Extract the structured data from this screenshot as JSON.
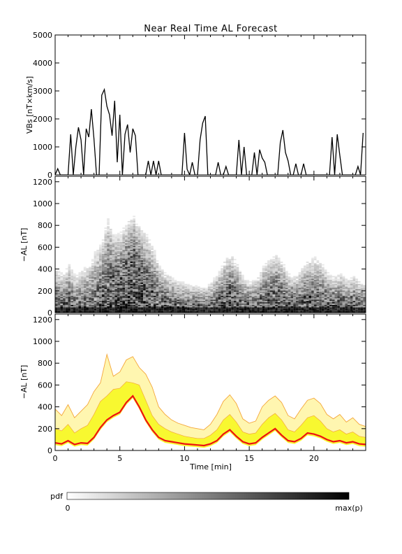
{
  "title": "Near Real Time AL Forecast",
  "colors": {
    "vbs_line": "#000000",
    "median": "#ee1111",
    "band_outer": "#fff6b0",
    "band_inner": "#f8f830",
    "band_edge": "#f4a63a"
  },
  "chart_data": [
    {
      "panel": "top",
      "type": "line",
      "ylabel": "VBs [nT×km/s]",
      "xlim": [
        0,
        24
      ],
      "ylim": [
        0,
        5000
      ],
      "yticks": [
        "0",
        "1000",
        "2000",
        "3000",
        "4000",
        "5000"
      ],
      "x_step_min": 0.5,
      "series": [
        {
          "values": [
            0,
            220,
            0,
            0,
            0,
            0,
            1450,
            0,
            1000,
            1700,
            1250,
            0,
            1650,
            1350,
            2350,
            1300,
            0,
            0,
            2850,
            3050,
            2450,
            2150,
            1400,
            2650,
            450,
            2150,
            0,
            1450,
            1800,
            800,
            1650,
            1400,
            0,
            0,
            0,
            0,
            500,
            0,
            500,
            0,
            500,
            0,
            0,
            0,
            0,
            0,
            0,
            0,
            0,
            0,
            1500,
            200,
            0,
            450,
            0,
            0,
            1250,
            1850,
            2100,
            0,
            0,
            0,
            0,
            450,
            0,
            0,
            300,
            0,
            0,
            0,
            0,
            1250,
            0,
            1000,
            0,
            0,
            0,
            800,
            0,
            900,
            600,
            450,
            0,
            0,
            0,
            0,
            0,
            1150,
            1600,
            800,
            500,
            0,
            0,
            400,
            0,
            0,
            400,
            0,
            0,
            0,
            0,
            0,
            0,
            0,
            0,
            0,
            0,
            1350,
            0,
            1450,
            700,
            0,
            0,
            0,
            0,
            0,
            0,
            300,
            0,
            1500
          ]
        }
      ]
    },
    {
      "panel": "middle",
      "type": "heatmap",
      "ylabel": "−AL [nT]",
      "xlim": [
        0,
        24
      ],
      "ylim": [
        0,
        1250
      ],
      "yticks": [
        "0",
        "200",
        "400",
        "600",
        "800",
        "1000",
        "1200"
      ]
    },
    {
      "panel": "bottom",
      "type": "area",
      "ylabel": "−AL [nT]",
      "xlabel": "Time [min]",
      "xlim": [
        0,
        24
      ],
      "ylim": [
        0,
        1250
      ],
      "yticks": [
        "0",
        "200",
        "400",
        "600",
        "800",
        "1000",
        "1200"
      ],
      "xticks": [
        "0",
        "5",
        "10",
        "15",
        "20"
      ],
      "x": [
        0,
        0.5,
        1,
        1.5,
        2,
        2.5,
        3,
        3.5,
        4,
        4.5,
        5,
        5.5,
        6,
        6.5,
        7,
        7.5,
        8,
        8.5,
        9,
        9.5,
        10,
        10.5,
        11,
        11.5,
        12,
        12.5,
        13,
        13.5,
        14,
        14.5,
        15,
        15.5,
        16,
        16.5,
        17,
        17.5,
        18,
        18.5,
        19,
        19.5,
        20,
        20.5,
        21,
        21.5,
        22,
        22.5,
        23,
        23.5,
        24
      ],
      "series": [
        {
          "name": "median",
          "values": [
            70,
            60,
            90,
            55,
            70,
            65,
            120,
            210,
            280,
            320,
            350,
            440,
            500,
            400,
            280,
            190,
            120,
            90,
            80,
            70,
            60,
            55,
            50,
            45,
            60,
            90,
            150,
            190,
            130,
            80,
            60,
            70,
            120,
            160,
            200,
            140,
            90,
            80,
            110,
            160,
            150,
            130,
            100,
            80,
            90,
            70,
            80,
            60,
            55
          ]
        },
        {
          "name": "inner_upper",
          "values": [
            200,
            180,
            240,
            160,
            200,
            230,
            330,
            450,
            500,
            560,
            570,
            630,
            620,
            600,
            460,
            320,
            240,
            200,
            170,
            150,
            130,
            120,
            110,
            110,
            140,
            190,
            280,
            330,
            260,
            170,
            150,
            160,
            240,
            300,
            340,
            280,
            190,
            170,
            230,
            300,
            320,
            270,
            200,
            170,
            190,
            150,
            170,
            130,
            120
          ]
        },
        {
          "name": "outer_upper",
          "values": [
            380,
            320,
            420,
            300,
            360,
            420,
            540,
            620,
            880,
            680,
            720,
            830,
            860,
            760,
            700,
            580,
            400,
            330,
            280,
            250,
            230,
            210,
            200,
            190,
            240,
            330,
            450,
            510,
            430,
            290,
            250,
            270,
            400,
            460,
            500,
            440,
            320,
            290,
            380,
            460,
            480,
            430,
            330,
            290,
            330,
            260,
            300,
            240,
            220
          ]
        }
      ]
    }
  ],
  "colorbar": {
    "label": "pdf",
    "min_label": "0",
    "max_label": "max(p)"
  }
}
